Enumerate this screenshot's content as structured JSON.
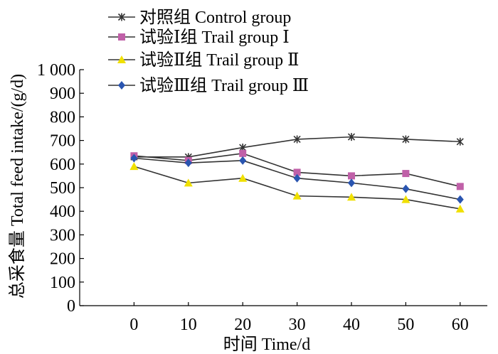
{
  "chart_data": {
    "type": "line",
    "xlabel": "时间 Time/d",
    "ylabel": "总采食量 Total feed intake/(g/d)",
    "x": [
      0,
      10,
      20,
      30,
      40,
      50,
      60
    ],
    "xticks": [
      "0",
      "10",
      "20",
      "30",
      "40",
      "50",
      "60"
    ],
    "ylim": [
      0,
      1000
    ],
    "yticks": [
      "0",
      "100",
      "200",
      "300",
      "400",
      "500",
      "600",
      "700",
      "800",
      "900",
      "1 000"
    ],
    "grid": false,
    "legend_position": "top",
    "series": [
      {
        "name": "对照组 Control group",
        "marker": "asterisk",
        "color": "#333333",
        "marker_color": "#333333",
        "values": [
          630,
          630,
          670,
          705,
          715,
          705,
          695
        ]
      },
      {
        "name": "试验Ⅰ组 Trail group Ⅰ",
        "marker": "square",
        "color": "#333333",
        "marker_color": "#c060a8",
        "values": [
          635,
          615,
          645,
          565,
          550,
          560,
          505
        ]
      },
      {
        "name": "试验Ⅱ组 Trail group Ⅱ",
        "marker": "triangle",
        "color": "#333333",
        "marker_color": "#f0e000",
        "values": [
          590,
          520,
          540,
          465,
          460,
          450,
          410
        ]
      },
      {
        "name": "试验Ⅲ组 Trail group Ⅲ",
        "marker": "diamond",
        "color": "#333333",
        "marker_color": "#2a55b0",
        "values": [
          625,
          605,
          615,
          540,
          520,
          495,
          450
        ]
      }
    ]
  }
}
